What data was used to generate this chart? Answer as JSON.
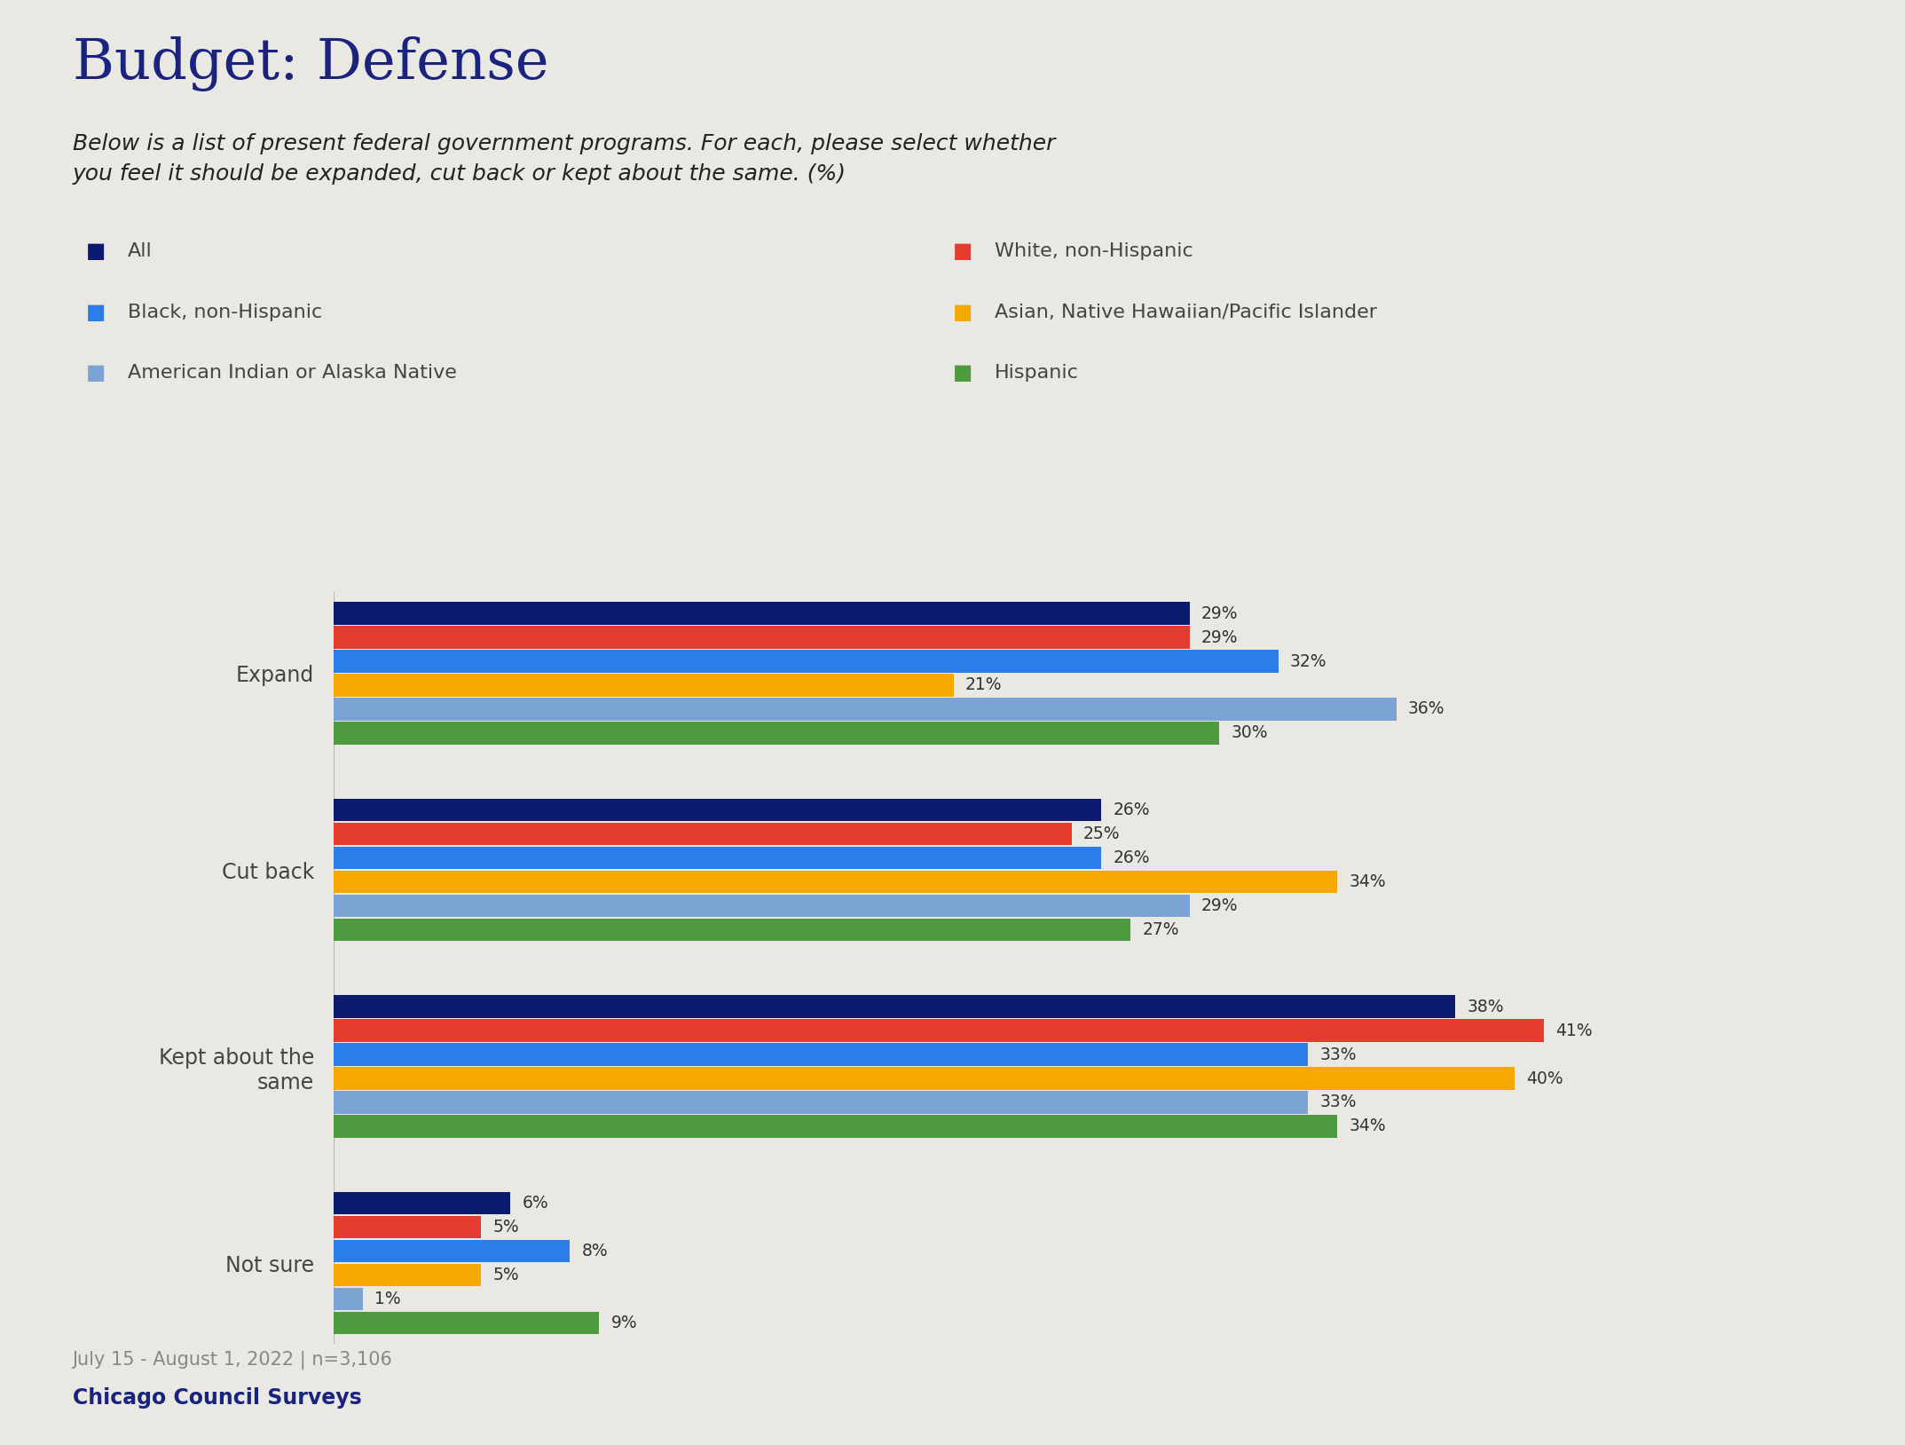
{
  "title": "Budget: Defense",
  "subtitle": "Below is a list of present federal government programs. For each, please select whether\nyou feel it should be expanded, cut back or kept about the same. (%)",
  "background_color": "#eae8e3",
  "categories": [
    "Expand",
    "Cut back",
    "Kept about the\nsame",
    "Not sure"
  ],
  "groups": [
    "All",
    "White, non-Hispanic",
    "Black, non-Hispanic",
    "Asian, Native Hawaiian/Pacific Islander",
    "American Indian or Alaska Native",
    "Hispanic"
  ],
  "colors": [
    "#0d1b6e",
    "#e63c2f",
    "#2b7de9",
    "#f5a800",
    "#7ba3d4",
    "#4e9a3e"
  ],
  "values": {
    "Expand": [
      29,
      29,
      32,
      21,
      36,
      30
    ],
    "Cut back": [
      26,
      25,
      26,
      34,
      29,
      27
    ],
    "Kept about the\nsame": [
      38,
      41,
      33,
      40,
      33,
      34
    ],
    "Not sure": [
      6,
      5,
      8,
      5,
      1,
      9
    ]
  },
  "legend_labels_col1": [
    "All",
    "Black, non-Hispanic",
    "American Indian or Alaska Native"
  ],
  "legend_labels_col2": [
    "White, non-Hispanic",
    "Asian, Native Hawaiian/Pacific Islander",
    "Hispanic"
  ],
  "legend_colors_col1": [
    "#0d1b6e",
    "#2b7de9",
    "#7ba3d4"
  ],
  "legend_colors_col2": [
    "#e63c2f",
    "#f5a800",
    "#4e9a3e"
  ],
  "footnote": "July 15 - August 1, 2022 | n=3,106",
  "source": "Chicago Council Surveys",
  "xlim_max": 50
}
